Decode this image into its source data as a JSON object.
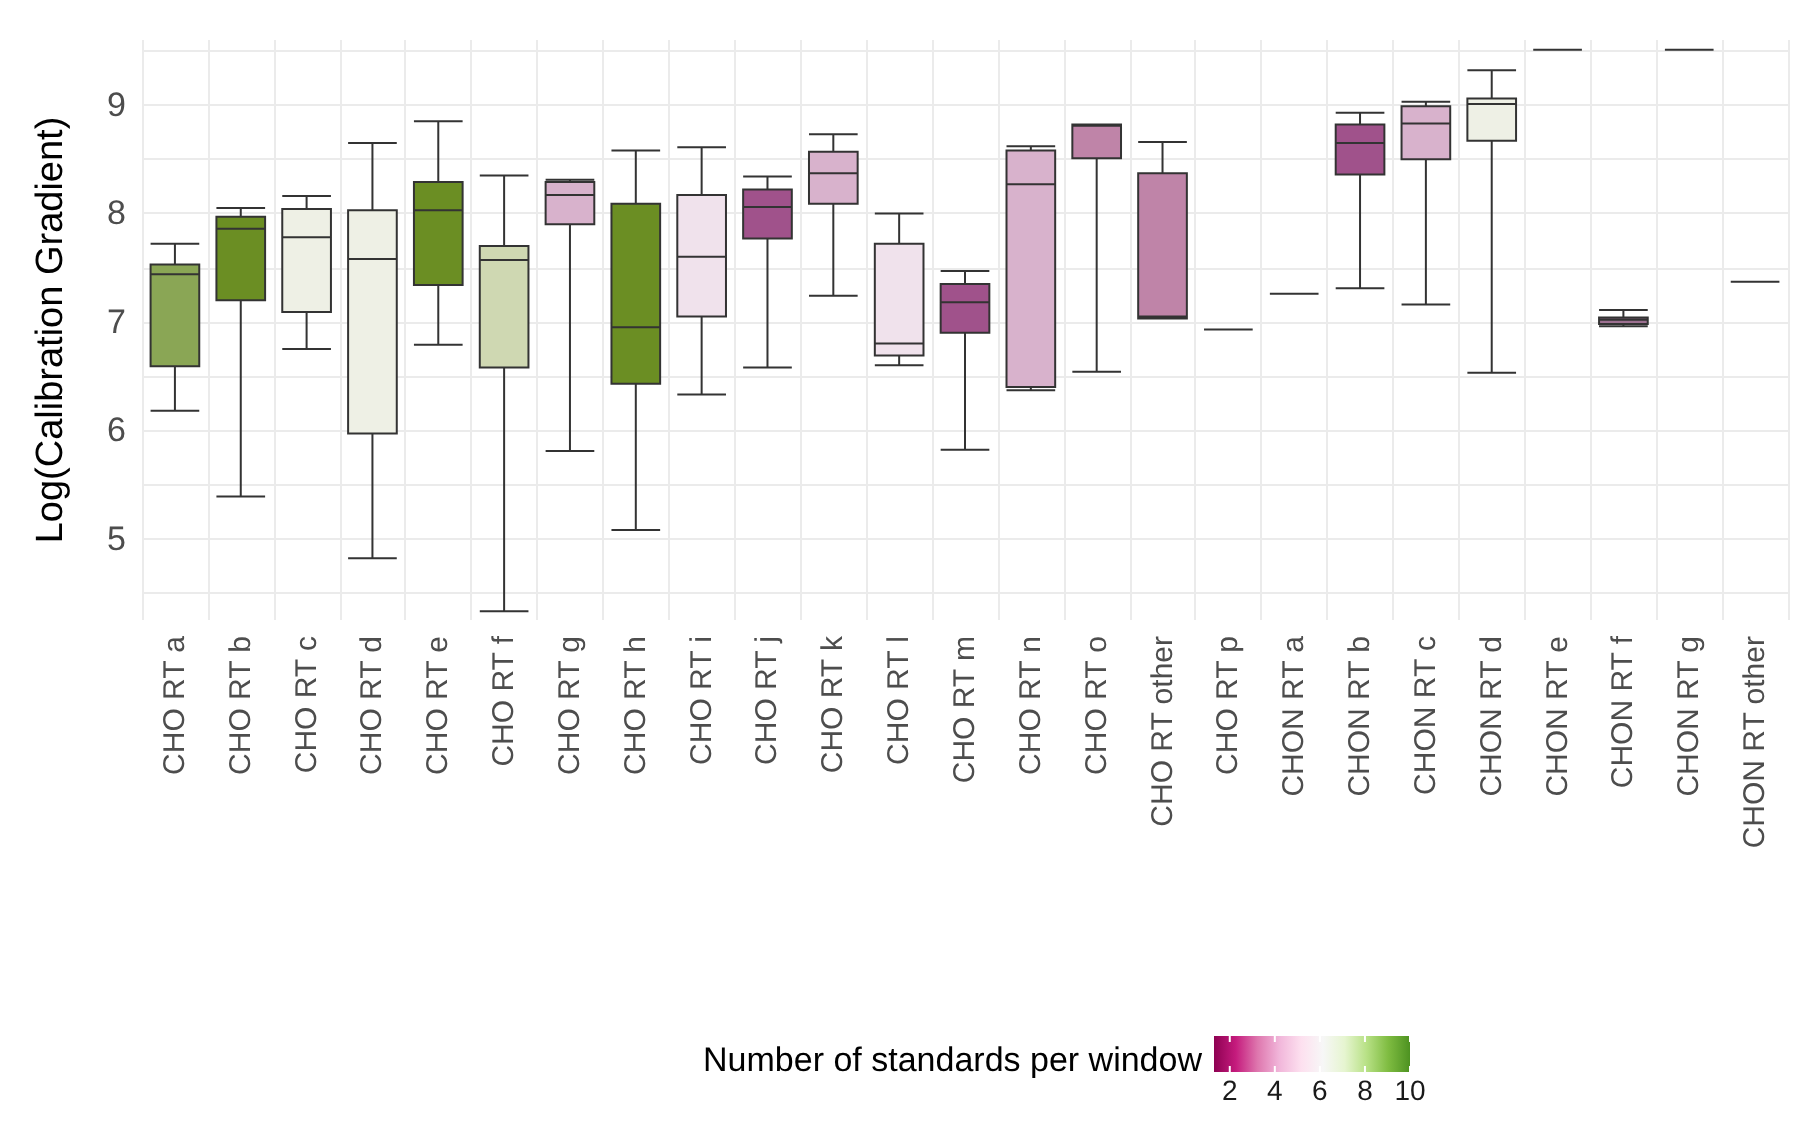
{
  "chart_data": {
    "type": "box",
    "ylabel": "Log(Calibration Gradient)",
    "clabel": "Number of standards per window",
    "clim": [
      1.3,
      10
    ],
    "cticks": [
      2,
      4,
      6,
      8,
      10
    ],
    "categories": [
      "CHO RT a",
      "CHO RT b",
      "CHO RT c",
      "CHO RT d",
      "CHO RT e",
      "CHO RT f",
      "CHO RT g",
      "CHO RT h",
      "CHO RT i",
      "CHO RT j",
      "CHO RT k",
      "CHO RT l",
      "CHO RT m",
      "CHO RT n",
      "CHO RT o",
      "CHO RT other",
      "CHO RT p",
      "CHON RT a",
      "CHON RT b",
      "CHON RT c",
      "CHON RT d",
      "CHON RT e",
      "CHON RT f",
      "CHON RT g",
      "CHON RT other"
    ],
    "colors": [
      "#8aa655",
      "#6b8e23",
      "#eef0e5",
      "#eef0e5",
      "#6b8e23",
      "#cfd8b2",
      "#d8b2cc",
      "#6b8e23",
      "#f0e2ec",
      "#a0528b",
      "#d8b2cc",
      "#f0e2ec",
      "#a0528b",
      "#d8b2cc",
      "#bf84a8",
      "#bf84a8",
      "#333333",
      "#333333",
      "#a0528b",
      "#d8b2cc",
      "#eef0e5",
      "#333333",
      "#9c7090",
      "#333333",
      "#333333"
    ],
    "boxes": [
      {
        "low": 6.18,
        "q1": 6.59,
        "median": 7.44,
        "q3": 7.53,
        "high": 7.72
      },
      {
        "low": 5.39,
        "q1": 7.2,
        "median": 7.86,
        "q3": 7.97,
        "high": 8.05
      },
      {
        "low": 6.75,
        "q1": 7.09,
        "median": 7.78,
        "q3": 8.04,
        "high": 8.16
      },
      {
        "low": 4.82,
        "q1": 5.97,
        "median": 7.58,
        "q3": 8.03,
        "high": 8.65
      },
      {
        "low": 6.79,
        "q1": 7.34,
        "median": 8.03,
        "q3": 8.29,
        "high": 8.85
      },
      {
        "low": 4.33,
        "q1": 6.58,
        "median": 7.57,
        "q3": 7.7,
        "high": 8.35
      },
      {
        "low": 5.81,
        "q1": 7.9,
        "median": 8.17,
        "q3": 8.29,
        "high": 8.31
      },
      {
        "low": 5.08,
        "q1": 6.43,
        "median": 6.95,
        "q3": 8.09,
        "high": 8.58
      },
      {
        "low": 6.33,
        "q1": 7.05,
        "median": 7.6,
        "q3": 8.17,
        "high": 8.61
      },
      {
        "low": 6.58,
        "q1": 7.77,
        "median": 8.06,
        "q3": 8.22,
        "high": 8.34
      },
      {
        "low": 7.24,
        "q1": 8.09,
        "median": 8.37,
        "q3": 8.57,
        "high": 8.73
      },
      {
        "low": 6.6,
        "q1": 6.69,
        "median": 6.8,
        "q3": 7.72,
        "high": 8.0
      },
      {
        "low": 5.82,
        "q1": 6.9,
        "median": 7.18,
        "q3": 7.35,
        "high": 7.47
      },
      {
        "low": 6.37,
        "q1": 6.4,
        "median": 8.27,
        "q3": 8.58,
        "high": 8.62
      },
      {
        "low": 6.54,
        "q1": 8.51,
        "median": 8.81,
        "q3": 8.82,
        "high": 8.82
      },
      {
        "low": 7.03,
        "q1": 7.03,
        "median": 7.05,
        "q3": 8.37,
        "high": 8.66
      },
      {
        "low": 6.93,
        "q1": 6.93,
        "median": 6.93,
        "q3": 6.93,
        "high": 6.93
      },
      {
        "low": 7.26,
        "q1": 7.26,
        "median": 7.26,
        "q3": 7.26,
        "high": 7.26
      },
      {
        "low": 7.31,
        "q1": 8.36,
        "median": 8.65,
        "q3": 8.82,
        "high": 8.93
      },
      {
        "low": 7.16,
        "q1": 8.5,
        "median": 8.83,
        "q3": 8.99,
        "high": 9.03
      },
      {
        "low": 6.53,
        "q1": 8.67,
        "median": 9.01,
        "q3": 9.06,
        "high": 9.32
      },
      {
        "low": 9.51,
        "q1": 9.51,
        "median": 9.51,
        "q3": 9.51,
        "high": 9.51
      },
      {
        "low": 6.96,
        "q1": 6.98,
        "median": 7.02,
        "q3": 7.04,
        "high": 7.11
      },
      {
        "low": 9.51,
        "q1": 9.51,
        "median": 9.51,
        "q3": 9.51,
        "high": 9.51
      },
      {
        "low": 7.37,
        "q1": 7.37,
        "median": 7.37,
        "q3": 7.37,
        "high": 7.37
      }
    ],
    "ylim": [
      4.25,
      9.6
    ],
    "yticks": [
      {
        "value": 4.5,
        "label": null
      },
      5,
      {
        "value": 5.5,
        "label": null
      },
      6,
      {
        "value": 6.5,
        "label": null
      },
      7,
      {
        "value": 7.5,
        "label": null
      },
      8,
      {
        "value": 8.5,
        "label": null
      },
      9,
      {
        "value": 9.5,
        "label": null
      }
    ],
    "grid": true
  }
}
